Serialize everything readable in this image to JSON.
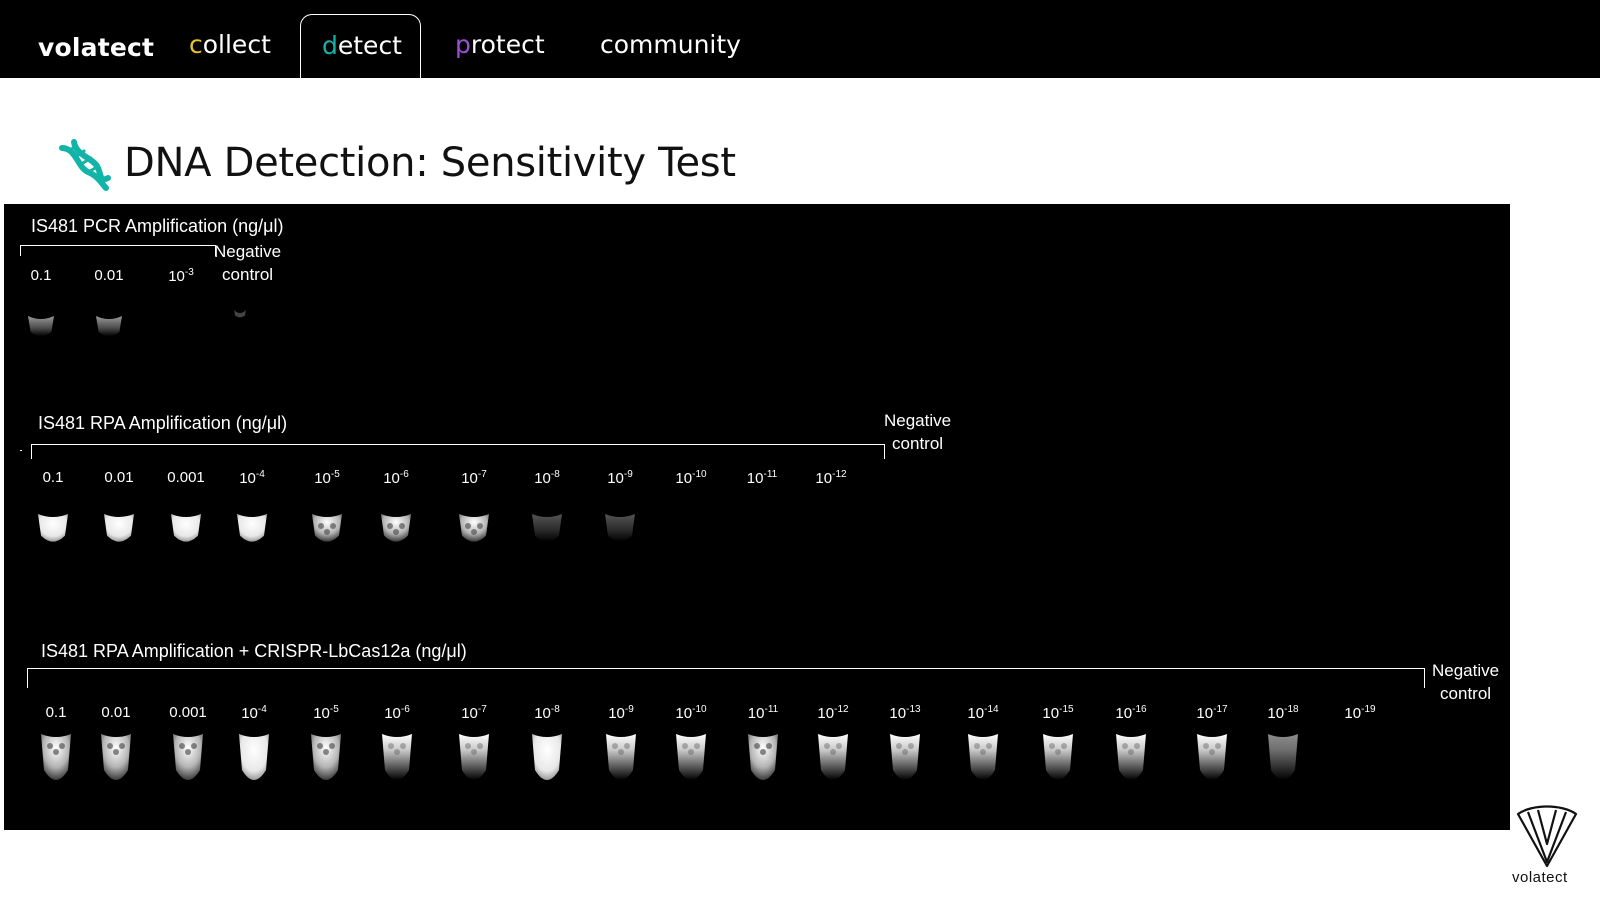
{
  "nav": {
    "brand": "volatect",
    "items": [
      {
        "first": "c",
        "rest": "ollect",
        "accent": "#e8c325"
      },
      {
        "first": "d",
        "rest": "etect",
        "accent": "#13b4a8",
        "active": true
      },
      {
        "first": "p",
        "rest": "rotect",
        "accent": "#9b4fd6"
      },
      {
        "first": "",
        "rest": "community",
        "accent": "#ffffff"
      }
    ]
  },
  "page": {
    "title": "DNA Detection: Sensitivity Test",
    "icon": "dna-icon",
    "icon_color": "#13b4a8"
  },
  "sections": [
    {
      "title": "IS481 PCR Amplification (ng/μl)",
      "negative_label": [
        "Negative",
        "control"
      ],
      "concentrations": [
        {
          "b": "0.1",
          "e": ""
        },
        {
          "b": "0.01",
          "e": ""
        },
        {
          "b": "10",
          "e": "-3"
        }
      ]
    },
    {
      "title": "IS481 RPA Amplification (ng/μl)",
      "negative_label": [
        "Negative",
        "control"
      ],
      "concentrations": [
        {
          "b": "0.1",
          "e": ""
        },
        {
          "b": "0.01",
          "e": ""
        },
        {
          "b": "0.001",
          "e": ""
        },
        {
          "b": "10",
          "e": "-4"
        },
        {
          "b": "10",
          "e": "-5"
        },
        {
          "b": "10",
          "e": "-6"
        },
        {
          "b": "10",
          "e": "-7"
        },
        {
          "b": "10",
          "e": "-8"
        },
        {
          "b": "10",
          "e": "-9"
        },
        {
          "b": "10",
          "e": "-10"
        },
        {
          "b": "10",
          "e": "-11"
        },
        {
          "b": "10",
          "e": "-12"
        }
      ]
    },
    {
      "title": "IS481 RPA Amplification + CRISPR-LbCas12a (ng/μl)",
      "negative_label": [
        "Negative",
        "control"
      ],
      "concentrations": [
        {
          "b": "0.1",
          "e": ""
        },
        {
          "b": "0.01",
          "e": ""
        },
        {
          "b": "0.001",
          "e": ""
        },
        {
          "b": "10",
          "e": "-4"
        },
        {
          "b": "10",
          "e": "-5"
        },
        {
          "b": "10",
          "e": "-6"
        },
        {
          "b": "10",
          "e": "-7"
        },
        {
          "b": "10",
          "e": "-8"
        },
        {
          "b": "10",
          "e": "-9"
        },
        {
          "b": "10",
          "e": "-10"
        },
        {
          "b": "10",
          "e": "-11"
        },
        {
          "b": "10",
          "e": "-12"
        },
        {
          "b": "10",
          "e": "-13"
        },
        {
          "b": "10",
          "e": "-14"
        },
        {
          "b": "10",
          "e": "-15"
        },
        {
          "b": "10",
          "e": "-16"
        },
        {
          "b": "10",
          "e": "-17"
        },
        {
          "b": "10",
          "e": "-18"
        },
        {
          "b": "10",
          "e": "-19"
        }
      ]
    }
  ],
  "footer": {
    "logo_text": "volatect",
    "logo_icon": "volatect-logo-icon"
  }
}
